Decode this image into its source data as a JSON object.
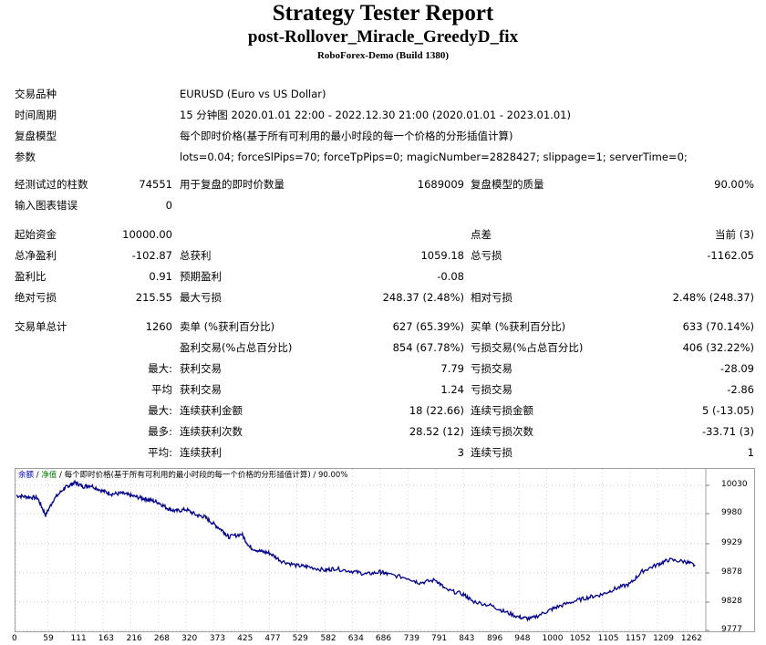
{
  "header": {
    "title": "Strategy Tester Report",
    "ea_name": "post-Rollover_Miracle_GreedyD_fix",
    "server": "RoboForex-Demo (Build 1380)"
  },
  "info": {
    "symbol_label": "交易品种",
    "symbol_value": "EURUSD (Euro vs US Dollar)",
    "period_label": "时间周期",
    "period_value": "15 分钟图 2020.01.01 22:00 - 2022.12.30 21:00 (2020.01.01 - 2023.01.01)",
    "model_label": "复盘模型",
    "model_value": "每个即时价格(基于所有可利用的最小时段的每一个价格的分形插值计算)",
    "params_label": "参数",
    "params_value": "lots=0.04; forceSlPips=70; forceTpPips=0; magicNumber=2828427; slippage=1; serverTime=0;"
  },
  "stats": {
    "bars_label": "经测试过的柱数",
    "bars_value": "74551",
    "ticks_label": "用于复盘的即时价数量",
    "ticks_value": "1689009",
    "quality_label": "复盘模型的质量",
    "quality_value": "90.00%",
    "mismatch_label": "输入图表错误",
    "mismatch_value": "0",
    "deposit_label": "起始资金",
    "deposit_value": "10000.00",
    "spread_label": "点差",
    "spread_value": "当前 (3)",
    "net_label": "总净盈利",
    "net_value": "-102.87",
    "gross_profit_label": "总获利",
    "gross_profit_value": "1059.18",
    "gross_loss_label": "总亏损",
    "gross_loss_value": "-1162.05",
    "pf_label": "盈利比",
    "pf_value": "0.91",
    "expected_label": "预期盈利",
    "expected_value": "-0.08",
    "abs_dd_label": "绝对亏损",
    "abs_dd_value": "215.55",
    "max_dd_label": "最大亏损",
    "max_dd_value": "248.37 (2.48%)",
    "rel_dd_label": "相对亏损",
    "rel_dd_value": "2.48% (248.37)",
    "trades_label": "交易单总计",
    "trades_value": "1260",
    "short_label": "卖单 (%获利百分比)",
    "short_value": "627 (65.39%)",
    "long_label": "买单 (%获利百分比)",
    "long_value": "633 (70.14%)",
    "profit_trades_label": "盈利交易(%占总百分比)",
    "profit_trades_value": "854 (67.78%)",
    "loss_trades_label": "亏损交易(%占总百分比)",
    "loss_trades_value": "406 (32.22%)",
    "largest_label": "最大:",
    "largest_profit_label": "获利交易",
    "largest_profit_value": "7.79",
    "largest_loss_label": "亏损交易",
    "largest_loss_value": "-28.09",
    "average_label": "平均",
    "avg_profit_label": "获利交易",
    "avg_profit_value": "1.24",
    "avg_loss_label": "亏损交易",
    "avg_loss_value": "-2.86",
    "max_label": "最大:",
    "max_consec_wins_label": "连续获利金额",
    "max_consec_wins_value": "18 (22.66)",
    "max_consec_losses_label": "连续亏损金额",
    "max_consec_losses_value": "5 (-13.05)",
    "maximal_label": "最多:",
    "maximal_consec_profit_label": "连续获利次数",
    "maximal_consec_profit_value": "28.52 (12)",
    "maximal_consec_loss_label": "连续亏损次数",
    "maximal_consec_loss_value": "-33.71 (3)",
    "avg2_label": "平均:",
    "avg_consec_wins_label": "连续获利",
    "avg_consec_wins_value": "3",
    "avg_consec_losses_label": "连续亏损",
    "avg_consec_losses_value": "1"
  },
  "chart_data": {
    "type": "line",
    "legend_balance": "余额",
    "legend_sep1": " / ",
    "legend_equity": "净值",
    "legend_rest": " / 每个即时价格(基于所有可利用的最小时段的每一个价格的分形插值计算) / 90.00%",
    "y_ticks": [
      "10030",
      "9980",
      "9929",
      "9878",
      "9828",
      "9777"
    ],
    "x_ticks": [
      "0",
      "59",
      "111",
      "163",
      "216",
      "268",
      "320",
      "373",
      "425",
      "477",
      "529",
      "582",
      "634",
      "686",
      "739",
      "791",
      "843",
      "896",
      "948",
      "1000",
      "1052",
      "1105",
      "1157",
      "1209",
      "1262"
    ],
    "ylim": [
      9777,
      10050
    ],
    "xlim": [
      0,
      1300
    ],
    "grid": true,
    "line_color": "#00008b",
    "series": [
      {
        "x": [
          0,
          20,
          40,
          55,
          70,
          90,
          100,
          111,
          125,
          140,
          163,
          180,
          200,
          216,
          235,
          250,
          268,
          285,
          300,
          320,
          340,
          355,
          373,
          390,
          400,
          425,
          440,
          460,
          477,
          500,
          529,
          550,
          582,
          600,
          634,
          660,
          686,
          700,
          739,
          760,
          791,
          810,
          843,
          860,
          896,
          920,
          948,
          970,
          1000,
          1020,
          1052,
          1080,
          1105,
          1130,
          1157,
          1180,
          1209,
          1230,
          1262,
          1280
        ],
        "y": [
          10012,
          10010,
          10008,
          9978,
          10005,
          10025,
          10030,
          10035,
          10028,
          10030,
          10020,
          10015,
          10016,
          10012,
          10008,
          10005,
          10000,
          9990,
          9985,
          9988,
          9978,
          9975,
          9962,
          9950,
          9940,
          9945,
          9922,
          9915,
          9912,
          9898,
          9890,
          9888,
          9882,
          9885,
          9880,
          9875,
          9879,
          9875,
          9868,
          9860,
          9865,
          9848,
          9840,
          9828,
          9820,
          9810,
          9800,
          9797,
          9810,
          9818,
          9828,
          9835,
          9840,
          9850,
          9858,
          9880,
          9892,
          9900,
          9897,
          9890
        ]
      }
    ]
  }
}
